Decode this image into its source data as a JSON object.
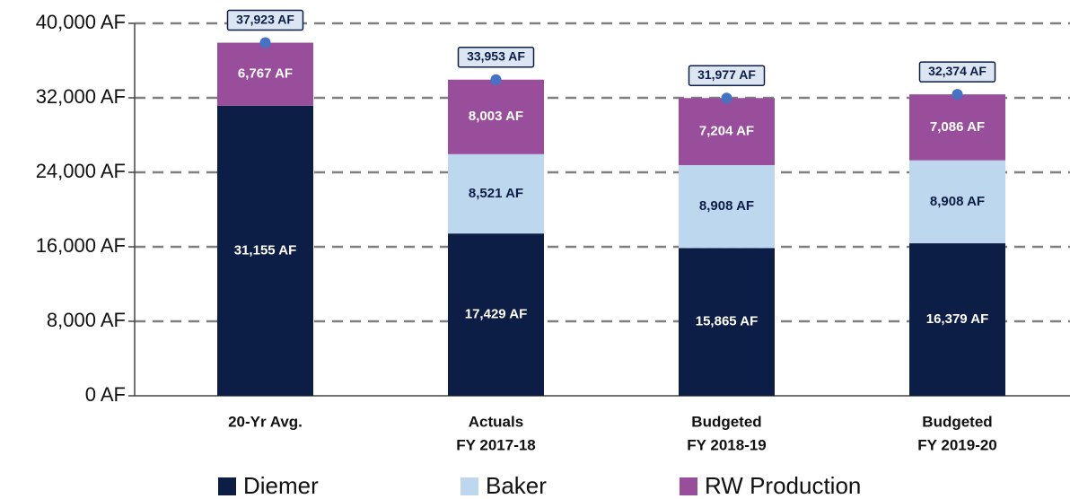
{
  "chart_data": {
    "type": "stacked_bar",
    "categories": [
      [
        "20-Yr Avg."
      ],
      [
        "Actuals",
        "FY 2017-18"
      ],
      [
        "Budgeted",
        "FY 2018-19"
      ],
      [
        "Budgeted",
        "FY 2019-20"
      ]
    ],
    "series": [
      {
        "name": "Diemer",
        "color": "#0c1e45",
        "label_color": "#ffffff",
        "values": [
          31155,
          17429,
          15865,
          16379
        ],
        "value_labels": [
          "31,155 AF",
          "17,429 AF",
          "15,865 AF",
          "16,379 AF"
        ]
      },
      {
        "name": "Baker",
        "color": "#bdd7ee",
        "label_color": "#0c1e45",
        "values": [
          null,
          8521,
          8908,
          8908
        ],
        "value_labels": [
          null,
          "8,521 AF",
          "8,908 AF",
          "8,908 AF"
        ]
      },
      {
        "name": "RW Production",
        "color": "#994e9c",
        "label_color": "#ffffff",
        "values": [
          6767,
          8003,
          7204,
          7086
        ],
        "value_labels": [
          "6,767 AF",
          "8,003 AF",
          "7,204 AF",
          "7,086 AF"
        ]
      }
    ],
    "totals": {
      "color": "#4472c4",
      "values": [
        37923,
        33953,
        31977,
        32374
      ],
      "value_labels": [
        "37,923 AF",
        "33,953 AF",
        "31,977 AF",
        "32,374 AF"
      ]
    },
    "ylim": [
      0,
      40000
    ],
    "yticks": [
      {
        "value": 0,
        "label": "0 AF"
      },
      {
        "value": 8000,
        "label": "8,000 AF"
      },
      {
        "value": 16000,
        "label": "16,000 AF"
      },
      {
        "value": 24000,
        "label": "24,000 AF"
      },
      {
        "value": 32000,
        "label": "32,000 AF"
      },
      {
        "value": 40000,
        "label": "40,000 AF"
      }
    ],
    "grid": true
  }
}
